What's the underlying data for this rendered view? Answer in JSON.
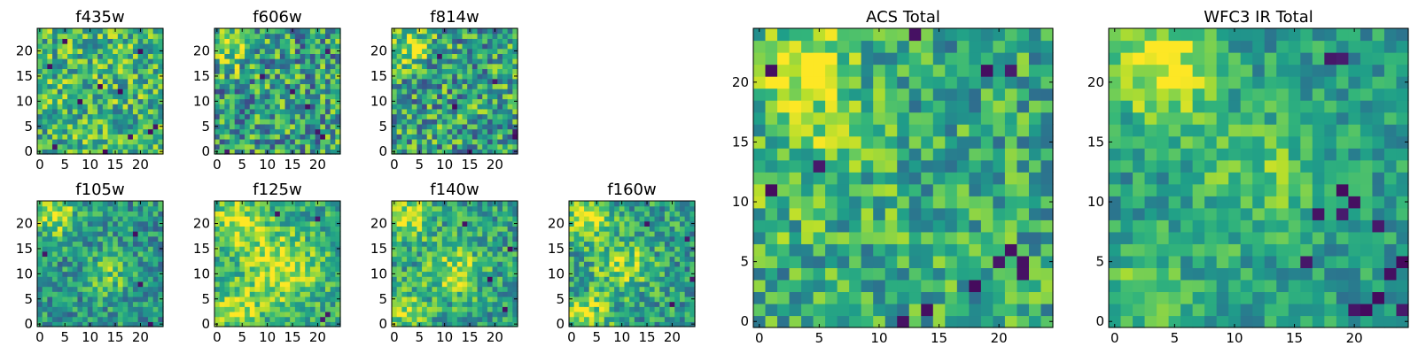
{
  "chart_data": [
    {
      "type": "heatmap",
      "title": "f435w",
      "colormap": "viridis",
      "grid_size": [
        25,
        25
      ],
      "xlim": [
        0,
        24
      ],
      "ylim": [
        0,
        24
      ],
      "xticks": [
        0,
        5,
        10,
        15,
        20
      ],
      "yticks": [
        0,
        5,
        10,
        15,
        20
      ],
      "grid": false,
      "blobs": [],
      "dark_spots": [
        [
          22,
          4
        ],
        [
          23,
          5
        ],
        [
          13,
          0
        ],
        [
          8,
          10
        ],
        [
          2,
          17
        ],
        [
          20,
          20
        ],
        [
          5,
          22
        ],
        [
          16,
          12
        ],
        [
          18,
          3
        ],
        [
          3,
          1
        ],
        [
          12,
          13
        ]
      ],
      "base": 0.66,
      "noise": 0.3
    },
    {
      "type": "heatmap",
      "title": "f606w",
      "colormap": "viridis",
      "grid_size": [
        25,
        25
      ],
      "xlim": [
        0,
        24
      ],
      "ylim": [
        0,
        24
      ],
      "xticks": [
        0,
        5,
        10,
        15,
        20
      ],
      "yticks": [
        0,
        5,
        10,
        15,
        20
      ],
      "grid": false,
      "blobs": [
        [
          3,
          21,
          3,
          0.35
        ]
      ],
      "dark_spots": [
        [
          20,
          4
        ],
        [
          21,
          3
        ],
        [
          2,
          0
        ],
        [
          15,
          12
        ],
        [
          18,
          9
        ],
        [
          9,
          15
        ],
        [
          22,
          20
        ]
      ],
      "base": 0.55,
      "noise": 0.35
    },
    {
      "type": "heatmap",
      "title": "f814w",
      "colormap": "viridis",
      "grid_size": [
        25,
        25
      ],
      "xlim": [
        0,
        24
      ],
      "ylim": [
        0,
        24
      ],
      "xticks": [
        0,
        5,
        10,
        15,
        20
      ],
      "yticks": [
        0,
        5,
        10,
        15,
        20
      ],
      "grid": false,
      "blobs": [
        [
          3,
          21,
          2.5,
          0.4
        ]
      ],
      "dark_spots": [
        [
          24,
          3
        ],
        [
          24,
          4
        ],
        [
          15,
          0
        ],
        [
          20,
          14
        ],
        [
          9,
          19
        ],
        [
          12,
          9
        ]
      ],
      "base": 0.57,
      "noise": 0.34
    },
    {
      "type": "heatmap",
      "title": "f105w",
      "colormap": "viridis",
      "grid_size": [
        25,
        25
      ],
      "xlim": [
        0,
        24
      ],
      "ylim": [
        0,
        24
      ],
      "xticks": [
        0,
        5,
        10,
        15,
        20
      ],
      "yticks": [
        0,
        5,
        10,
        15,
        20
      ],
      "grid": false,
      "blobs": [
        [
          3,
          22,
          3,
          0.4
        ],
        [
          14,
          10,
          3,
          0.25
        ]
      ],
      "dark_spots": [
        [
          20,
          8
        ],
        [
          22,
          0
        ],
        [
          1,
          14
        ],
        [
          19,
          18
        ]
      ],
      "base": 0.52,
      "noise": 0.24
    },
    {
      "type": "heatmap",
      "title": "f125w",
      "colormap": "viridis",
      "grid_size": [
        25,
        25
      ],
      "xlim": [
        0,
        24
      ],
      "ylim": [
        0,
        24
      ],
      "xticks": [
        0,
        5,
        10,
        15,
        20
      ],
      "yticks": [
        0,
        5,
        10,
        15,
        20
      ],
      "grid": false,
      "blobs": [
        [
          4,
          20,
          4,
          0.3
        ],
        [
          13,
          11,
          5,
          0.35
        ],
        [
          4,
          3,
          3,
          0.3
        ]
      ],
      "dark_spots": [
        [
          21,
          1
        ],
        [
          22,
          2
        ],
        [
          12,
          22
        ],
        [
          20,
          21
        ]
      ],
      "base": 0.6,
      "noise": 0.22
    },
    {
      "type": "heatmap",
      "title": "f140w",
      "colormap": "viridis",
      "grid_size": [
        25,
        25
      ],
      "xlim": [
        0,
        24
      ],
      "ylim": [
        0,
        24
      ],
      "xticks": [
        0,
        5,
        10,
        15,
        20
      ],
      "yticks": [
        0,
        5,
        10,
        15,
        20
      ],
      "grid": false,
      "blobs": [
        [
          3,
          21,
          3,
          0.35
        ],
        [
          12,
          11,
          4,
          0.3
        ],
        [
          2,
          3,
          3,
          0.3
        ]
      ],
      "dark_spots": [
        [
          22,
          3
        ],
        [
          23,
          15
        ],
        [
          14,
          20
        ],
        [
          19,
          9
        ]
      ],
      "base": 0.56,
      "noise": 0.24
    },
    {
      "type": "heatmap",
      "title": "f160w",
      "colormap": "viridis",
      "grid_size": [
        25,
        25
      ],
      "xlim": [
        0,
        24
      ],
      "ylim": [
        0,
        24
      ],
      "xticks": [
        0,
        5,
        10,
        15,
        20
      ],
      "yticks": [
        0,
        5,
        10,
        15,
        20
      ],
      "grid": false,
      "blobs": [
        [
          3,
          21,
          3,
          0.4
        ],
        [
          10,
          12,
          4,
          0.3
        ],
        [
          3,
          1,
          3,
          0.4
        ]
      ],
      "dark_spots": [
        [
          23,
          17
        ],
        [
          24,
          9
        ],
        [
          20,
          4
        ],
        [
          15,
          20
        ]
      ],
      "base": 0.55,
      "noise": 0.25
    },
    {
      "type": "heatmap",
      "title": "ACS Total",
      "colormap": "viridis",
      "grid_size": [
        25,
        25
      ],
      "xlim": [
        0,
        24
      ],
      "ylim": [
        0,
        24
      ],
      "xticks": [
        0,
        5,
        10,
        15,
        20
      ],
      "yticks": [
        0,
        5,
        10,
        15,
        20
      ],
      "grid": false,
      "blobs": [
        [
          4,
          21,
          2.5,
          0.45
        ],
        [
          4,
          13,
          4,
          0.15
        ]
      ],
      "dark_spots": [
        [
          1,
          21
        ],
        [
          13,
          24
        ],
        [
          19,
          21
        ],
        [
          21,
          21
        ],
        [
          5,
          13
        ],
        [
          21,
          6
        ],
        [
          22,
          4
        ],
        [
          22,
          5
        ],
        [
          20,
          5
        ],
        [
          14,
          1
        ],
        [
          12,
          0
        ],
        [
          18,
          3
        ],
        [
          1,
          11
        ]
      ],
      "base": 0.6,
      "noise": 0.26
    },
    {
      "type": "heatmap",
      "title": "WFC3 IR Total",
      "colormap": "viridis",
      "grid_size": [
        25,
        25
      ],
      "xlim": [
        0,
        24
      ],
      "ylim": [
        0,
        24
      ],
      "xticks": [
        0,
        5,
        10,
        15,
        20
      ],
      "yticks": [
        0,
        5,
        10,
        15,
        20
      ],
      "grid": false,
      "blobs": [
        [
          4,
          21,
          3,
          0.45
        ],
        [
          12,
          12,
          4,
          0.2
        ],
        [
          2,
          2,
          3,
          0.2
        ]
      ],
      "dark_spots": [
        [
          18,
          22
        ],
        [
          19,
          22
        ],
        [
          19,
          11
        ],
        [
          20,
          10
        ],
        [
          19,
          9
        ],
        [
          22,
          8
        ],
        [
          24,
          5
        ],
        [
          23,
          4
        ],
        [
          22,
          2
        ],
        [
          21,
          1
        ],
        [
          20,
          1
        ],
        [
          16,
          5
        ],
        [
          24,
          1
        ],
        [
          17,
          9
        ]
      ],
      "base": 0.55,
      "noise": 0.18
    }
  ]
}
